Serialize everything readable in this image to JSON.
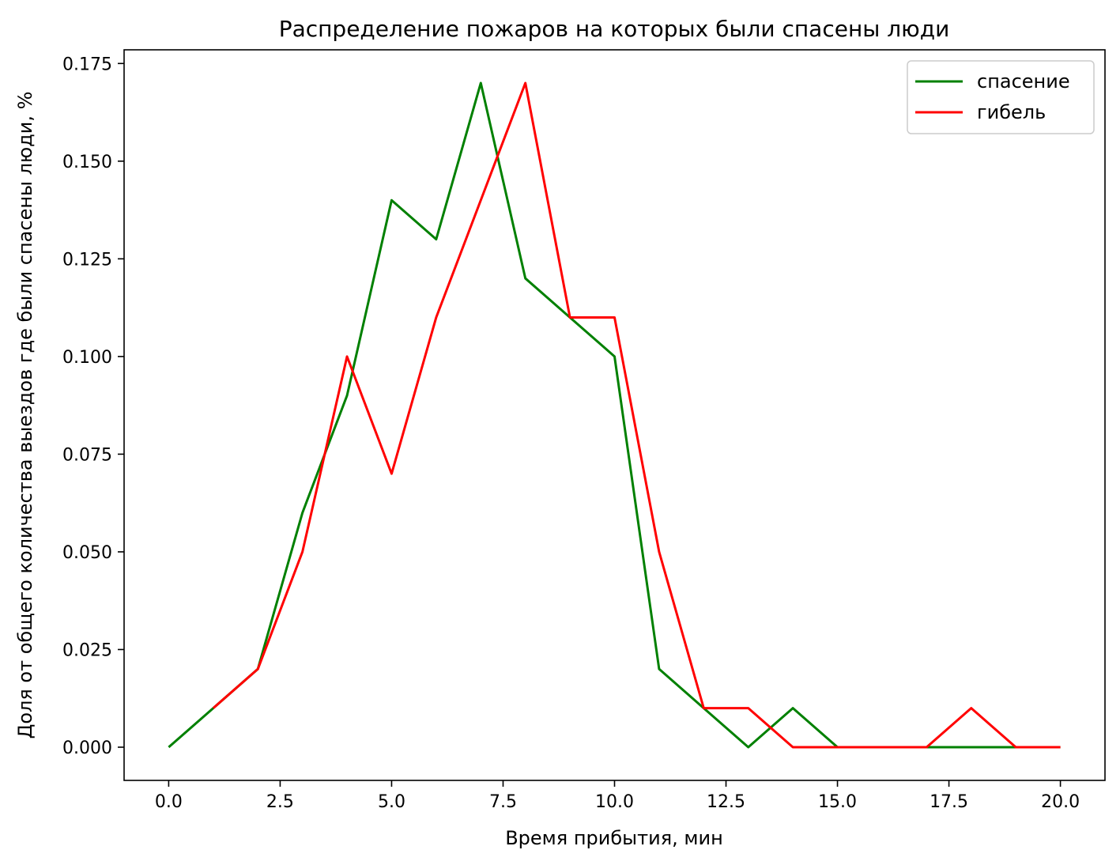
{
  "chart_data": {
    "type": "line",
    "title": "Распределение пожаров на которых были спасены люди",
    "xlabel": "Время прибытия, мин",
    "ylabel": "Доля от общего количества выездов где были спасены люди, %",
    "xlim": [
      -1,
      21
    ],
    "ylim": [
      -0.0085,
      0.1785
    ],
    "xticks": [
      0,
      2.5,
      5,
      7.5,
      10,
      12.5,
      15,
      17.5,
      20
    ],
    "xtick_labels": [
      "0.0",
      "2.5",
      "5.0",
      "7.5",
      "10.0",
      "12.5",
      "15.0",
      "17.5",
      "20.0"
    ],
    "yticks": [
      0,
      0.025,
      0.05,
      0.075,
      0.1,
      0.125,
      0.15,
      0.175
    ],
    "ytick_labels": [
      "0.000",
      "0.025",
      "0.050",
      "0.075",
      "0.100",
      "0.125",
      "0.150",
      "0.175"
    ],
    "legend_position": "top-right",
    "grid": false,
    "x": [
      0,
      1,
      2,
      3,
      4,
      5,
      6,
      7,
      8,
      9,
      10,
      11,
      12,
      13,
      14,
      15,
      16,
      17,
      18,
      19,
      20
    ],
    "series": [
      {
        "name": "спасение",
        "color": "#008000",
        "values": [
          0,
          0.01,
          0.02,
          0.06,
          0.09,
          0.14,
          0.13,
          0.17,
          0.12,
          0.11,
          0.1,
          0.02,
          0.01,
          0,
          0.01,
          0,
          0,
          0,
          0,
          0,
          0
        ]
      },
      {
        "name": "гибель",
        "color": "#ff0000",
        "values": [
          null,
          0.01,
          0.02,
          0.05,
          0.1,
          0.07,
          0.11,
          0.14,
          0.17,
          0.11,
          0.11,
          0.05,
          0.01,
          0.01,
          0,
          0,
          0,
          0,
          0.01,
          0,
          0
        ]
      }
    ]
  }
}
